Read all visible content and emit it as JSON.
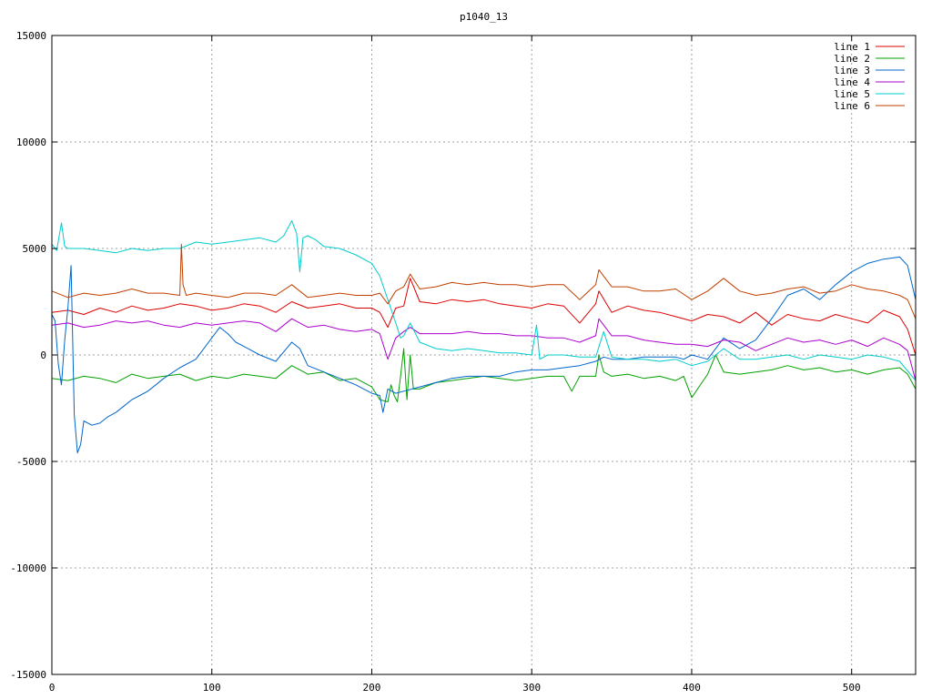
{
  "chart_data": {
    "type": "line",
    "title": "p1040_13",
    "xlabel": "",
    "ylabel": "",
    "xlim": [
      0,
      540
    ],
    "ylim": [
      -15000,
      15000
    ],
    "xticks": [
      0,
      100,
      200,
      300,
      400,
      500
    ],
    "yticks": [
      -15000,
      -10000,
      -5000,
      0,
      5000,
      10000,
      15000
    ],
    "grid": true,
    "legend_position": "top-right",
    "series": [
      {
        "name": "line 1",
        "color": "#dd0000",
        "x": [
          0,
          10,
          20,
          30,
          40,
          50,
          60,
          70,
          80,
          90,
          100,
          110,
          120,
          130,
          140,
          150,
          160,
          170,
          180,
          190,
          200,
          205,
          210,
          215,
          220,
          224,
          230,
          240,
          250,
          260,
          270,
          280,
          290,
          300,
          310,
          320,
          330,
          340,
          342,
          350,
          360,
          370,
          380,
          390,
          400,
          410,
          420,
          430,
          440,
          450,
          460,
          470,
          480,
          490,
          500,
          510,
          520,
          530,
          535,
          540
        ],
        "y": [
          2000,
          2100,
          1900,
          2200,
          2000,
          2300,
          2100,
          2200,
          2400,
          2300,
          2100,
          2200,
          2400,
          2300,
          2000,
          2500,
          2200,
          2300,
          2400,
          2200,
          2200,
          2000,
          1300,
          2200,
          2300,
          3600,
          2500,
          2400,
          2600,
          2500,
          2600,
          2400,
          2300,
          2200,
          2400,
          2300,
          1500,
          2400,
          3000,
          2000,
          2300,
          2100,
          2000,
          1800,
          1600,
          1900,
          1800,
          1500,
          2000,
          1400,
          1900,
          1700,
          1600,
          1900,
          1700,
          1500,
          2100,
          1800,
          1200,
          0
        ]
      },
      {
        "name": "line 2",
        "color": "#00a000",
        "x": [
          0,
          10,
          20,
          30,
          40,
          50,
          60,
          70,
          80,
          90,
          100,
          110,
          120,
          130,
          140,
          150,
          160,
          170,
          180,
          190,
          200,
          205,
          210,
          212,
          214,
          216,
          218,
          220,
          222,
          224,
          226,
          230,
          240,
          250,
          260,
          270,
          280,
          290,
          300,
          310,
          320,
          325,
          330,
          340,
          342,
          345,
          350,
          360,
          370,
          380,
          390,
          395,
          400,
          410,
          415,
          420,
          430,
          440,
          450,
          460,
          470,
          480,
          490,
          500,
          510,
          520,
          530,
          535,
          540
        ],
        "y": [
          -1100,
          -1200,
          -1000,
          -1100,
          -1300,
          -900,
          -1100,
          -1000,
          -900,
          -1200,
          -1000,
          -1100,
          -900,
          -1000,
          -1100,
          -500,
          -900,
          -800,
          -1200,
          -1100,
          -1500,
          -2100,
          -2200,
          -1400,
          -1900,
          -2200,
          -1000,
          300,
          -2100,
          0,
          -1600,
          -1600,
          -1300,
          -1200,
          -1100,
          -1000,
          -1100,
          -1200,
          -1100,
          -1000,
          -1000,
          -1700,
          -1000,
          -1000,
          0,
          -800,
          -1000,
          -900,
          -1100,
          -1000,
          -1200,
          -1000,
          -2000,
          -900,
          0,
          -800,
          -900,
          -800,
          -700,
          -500,
          -700,
          -600,
          -800,
          -700,
          -900,
          -700,
          -600,
          -900,
          -1600
        ]
      },
      {
        "name": "line 3",
        "color": "#0066cc",
        "x": [
          0,
          2,
          4,
          6,
          8,
          10,
          12,
          14,
          16,
          18,
          20,
          25,
          30,
          35,
          40,
          45,
          50,
          55,
          60,
          65,
          70,
          80,
          90,
          100,
          105,
          110,
          115,
          120,
          130,
          140,
          150,
          155,
          160,
          170,
          180,
          190,
          200,
          205,
          207,
          210,
          215,
          220,
          230,
          240,
          250,
          260,
          270,
          280,
          290,
          300,
          310,
          320,
          330,
          340,
          345,
          350,
          360,
          370,
          380,
          390,
          395,
          400,
          410,
          420,
          430,
          440,
          450,
          460,
          470,
          480,
          490,
          500,
          510,
          520,
          530,
          535,
          540
        ],
        "y": [
          1900,
          1600,
          -400,
          -1400,
          700,
          2200,
          4200,
          -2800,
          -4600,
          -4200,
          -3100,
          -3300,
          -3200,
          -2900,
          -2700,
          -2400,
          -2100,
          -1900,
          -1700,
          -1400,
          -1100,
          -600,
          -200,
          800,
          1300,
          1000,
          600,
          400,
          0,
          -300,
          600,
          300,
          -500,
          -800,
          -1100,
          -1400,
          -1800,
          -1900,
          -2700,
          -1600,
          -1800,
          -1700,
          -1500,
          -1300,
          -1100,
          -1000,
          -1000,
          -1000,
          -800,
          -700,
          -700,
          -600,
          -500,
          -300,
          -100,
          -200,
          -200,
          -100,
          -100,
          -100,
          -200,
          0,
          -200,
          800,
          300,
          700,
          1700,
          2800,
          3100,
          2600,
          3300,
          3900,
          4300,
          4500,
          4600,
          4200,
          2600
        ]
      },
      {
        "name": "line 4",
        "color": "#aa00cc",
        "x": [
          0,
          10,
          20,
          30,
          40,
          50,
          60,
          70,
          80,
          90,
          100,
          110,
          120,
          130,
          140,
          150,
          160,
          170,
          180,
          190,
          200,
          205,
          210,
          215,
          220,
          224,
          230,
          240,
          250,
          260,
          270,
          280,
          290,
          300,
          310,
          320,
          330,
          340,
          342,
          350,
          360,
          370,
          380,
          390,
          400,
          410,
          420,
          430,
          440,
          450,
          460,
          470,
          480,
          490,
          500,
          510,
          520,
          530,
          535,
          540
        ],
        "y": [
          1400,
          1500,
          1300,
          1400,
          1600,
          1500,
          1600,
          1400,
          1300,
          1500,
          1400,
          1500,
          1600,
          1500,
          1100,
          1700,
          1300,
          1400,
          1200,
          1100,
          1200,
          1000,
          -200,
          800,
          1100,
          1300,
          1000,
          1000,
          1000,
          1100,
          1000,
          1000,
          900,
          900,
          800,
          800,
          600,
          900,
          1700,
          900,
          900,
          700,
          600,
          500,
          500,
          400,
          700,
          600,
          200,
          500,
          800,
          600,
          700,
          500,
          700,
          400,
          800,
          500,
          200,
          -1200
        ]
      },
      {
        "name": "line 5",
        "color": "#00cccc",
        "x": [
          0,
          3,
          6,
          8,
          10,
          20,
          30,
          40,
          50,
          60,
          70,
          80,
          90,
          100,
          110,
          120,
          130,
          140,
          145,
          150,
          153,
          155,
          157,
          160,
          165,
          170,
          180,
          190,
          200,
          205,
          210,
          215,
          218,
          220,
          224,
          230,
          240,
          250,
          260,
          270,
          280,
          290,
          300,
          303,
          305,
          310,
          320,
          330,
          340,
          345,
          350,
          360,
          370,
          380,
          390,
          400,
          410,
          420,
          430,
          440,
          450,
          460,
          470,
          480,
          490,
          500,
          510,
          520,
          530,
          540
        ],
        "y": [
          5200,
          4900,
          6200,
          5100,
          5000,
          5000,
          4900,
          4800,
          5000,
          4900,
          5000,
          5000,
          5300,
          5200,
          5300,
          5400,
          5500,
          5300,
          5600,
          6300,
          5700,
          3900,
          5500,
          5600,
          5400,
          5100,
          5000,
          4700,
          4300,
          3700,
          2600,
          1500,
          800,
          900,
          1500,
          600,
          300,
          200,
          300,
          200,
          100,
          100,
          0,
          1400,
          -200,
          0,
          0,
          -100,
          -100,
          1100,
          -100,
          -200,
          -200,
          -300,
          -200,
          -500,
          -300,
          300,
          -200,
          -200,
          -100,
          0,
          -200,
          0,
          -100,
          -200,
          0,
          -100,
          -300,
          -1200
        ]
      },
      {
        "name": "line 6",
        "color": "#c04000",
        "x": [
          0,
          10,
          20,
          30,
          40,
          50,
          60,
          70,
          80,
          81,
          82,
          84,
          90,
          100,
          110,
          120,
          130,
          140,
          150,
          160,
          170,
          180,
          190,
          200,
          205,
          210,
          215,
          220,
          224,
          230,
          240,
          250,
          260,
          270,
          280,
          290,
          300,
          310,
          320,
          330,
          340,
          342,
          350,
          360,
          370,
          380,
          390,
          400,
          410,
          420,
          430,
          440,
          450,
          460,
          470,
          480,
          490,
          500,
          510,
          520,
          530,
          535,
          540
        ],
        "y": [
          3000,
          2700,
          2900,
          2800,
          2900,
          3100,
          2900,
          2900,
          2800,
          5200,
          3300,
          2800,
          2900,
          2800,
          2700,
          2900,
          2900,
          2800,
          3300,
          2700,
          2800,
          2900,
          2800,
          2800,
          2900,
          2400,
          3000,
          3200,
          3800,
          3100,
          3200,
          3400,
          3300,
          3400,
          3300,
          3300,
          3200,
          3300,
          3300,
          2600,
          3300,
          4000,
          3200,
          3200,
          3000,
          3000,
          3100,
          2600,
          3000,
          3600,
          3000,
          2800,
          2900,
          3100,
          3200,
          2900,
          3000,
          3300,
          3100,
          3000,
          2800,
          2600,
          1700
        ]
      }
    ]
  }
}
